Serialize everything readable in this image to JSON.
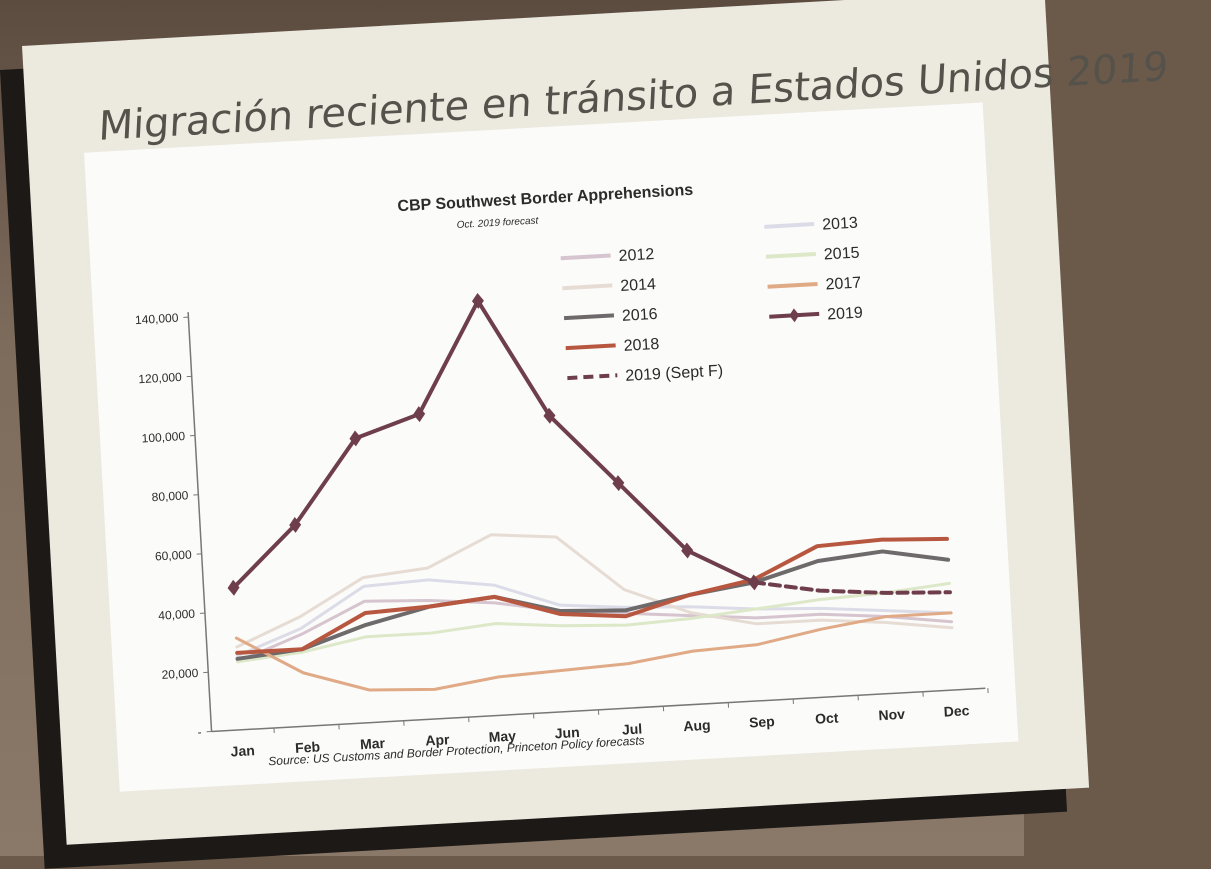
{
  "slide": {
    "title": "Migración reciente en tránsito a Estados Unidos  2019"
  },
  "chart_data": {
    "type": "line",
    "title": "CBP Southwest Border Apprehensions",
    "subtitle": "Oct. 2019 forecast",
    "source": "Source: US Customs and Border Protection, Princeton Policy forecasts",
    "categories": [
      "Jan",
      "Feb",
      "Mar",
      "Apr",
      "May",
      "Jun",
      "Jul",
      "Aug",
      "Sep",
      "Oct",
      "Nov",
      "Dec"
    ],
    "ylim": [
      0,
      140000
    ],
    "yticks": [
      0,
      20000,
      40000,
      60000,
      80000,
      100000,
      120000,
      140000
    ],
    "ytick_labels": [
      "-",
      "20,000",
      "40,000",
      "60,000",
      "80,000",
      "100,000",
      "120,000",
      "140,000"
    ],
    "legend_position": "top-right",
    "series": [
      {
        "name": "2012",
        "color": "#d6c4cf",
        "style": "solid",
        "values": [
          23000,
          31000,
          41000,
          40000,
          38000,
          34000,
          32000,
          30000,
          28000,
          28000,
          26000,
          23000
        ]
      },
      {
        "name": "2013",
        "color": "#dcdce8",
        "style": "solid",
        "values": [
          25000,
          33000,
          46000,
          47000,
          44000,
          36000,
          34000,
          33000,
          31000,
          30000,
          28000,
          26000
        ]
      },
      {
        "name": "2014",
        "color": "#e6dcd4",
        "style": "solid",
        "values": [
          28000,
          37000,
          49000,
          51000,
          61000,
          59000,
          40000,
          31000,
          26000,
          26000,
          24000,
          21000
        ]
      },
      {
        "name": "2015",
        "color": "#dce8c8",
        "style": "solid",
        "values": [
          23000,
          25000,
          29000,
          29000,
          31000,
          29000,
          28000,
          29000,
          31000,
          33000,
          34000,
          36000
        ]
      },
      {
        "name": "2016",
        "color": "#6e6a6c",
        "style": "solid",
        "values": [
          24000,
          26000,
          33000,
          38000,
          40000,
          34000,
          33000,
          37000,
          40000,
          46000,
          48000,
          44000
        ]
      },
      {
        "name": "2017",
        "color": "#e0aa86",
        "style": "solid",
        "values": [
          31000,
          18000,
          11000,
          10000,
          13000,
          14000,
          15000,
          18000,
          19000,
          23000,
          26000,
          26000
        ]
      },
      {
        "name": "2018",
        "color": "#b8573f",
        "style": "solid",
        "values": [
          26000,
          26000,
          37000,
          38000,
          40000,
          33000,
          31000,
          37000,
          41000,
          51000,
          52000,
          51000
        ]
      },
      {
        "name": "2019",
        "color": "#6e3e4c",
        "style": "diamond",
        "values": [
          48000,
          68000,
          96000,
          103000,
          140000,
          100000,
          76000,
          52000,
          40000,
          null,
          null,
          null
        ]
      },
      {
        "name": "2019 (Sept F)",
        "color": "#6e3e4c",
        "style": "dashed",
        "values": [
          null,
          null,
          null,
          null,
          null,
          null,
          null,
          null,
          40000,
          36000,
          34000,
          33000
        ]
      }
    ]
  }
}
